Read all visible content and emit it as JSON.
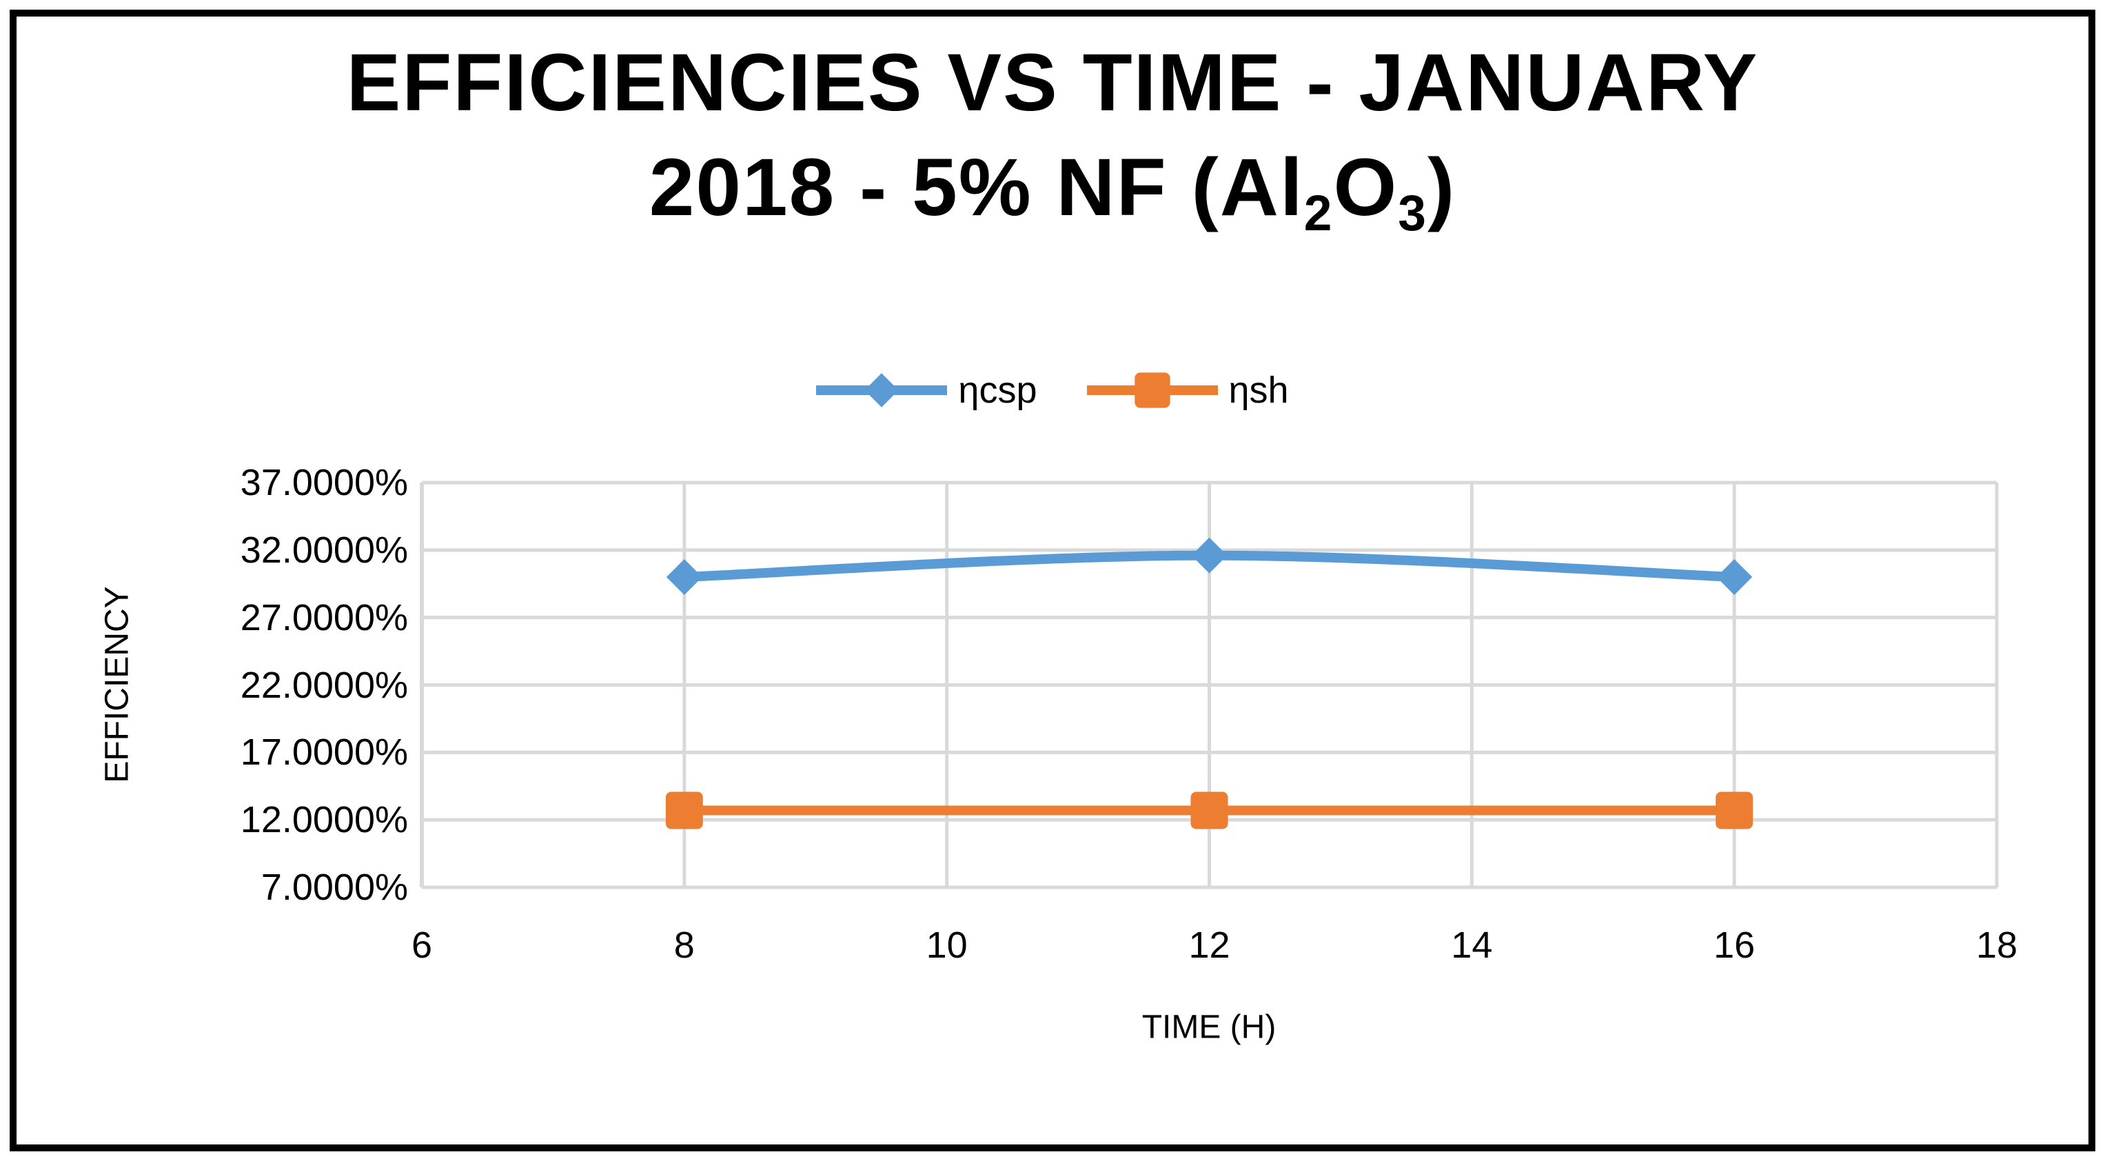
{
  "title": {
    "line1": "EFFICIENCIES VS TIME - JANUARY",
    "line2": {
      "prefix": "2018 - 5% NF (Al",
      "sub1": "2",
      "mid": "O",
      "sub2": "3",
      "suffix": ")"
    }
  },
  "chart_data": {
    "type": "line",
    "title": "EFFICIENCIES VS TIME - JANUARY 2018 - 5% NF (Al2O3)",
    "x": [
      8,
      12,
      16
    ],
    "series": [
      {
        "name": "ηcsp",
        "values": [
          30.0,
          31.6,
          30.0
        ],
        "color": "#5B9BD5",
        "marker": "diamond",
        "smooth": true
      },
      {
        "name": "ηsh",
        "values": [
          12.7,
          12.7,
          12.7
        ],
        "color": "#ED7D31",
        "marker": "square",
        "smooth": false
      }
    ],
    "xlabel": "TIME (H)",
    "ylabel": "EFFICIENCY",
    "xlim": [
      6,
      18
    ],
    "ylim": [
      7,
      37
    ],
    "x_ticks": [
      6,
      8,
      10,
      12,
      14,
      16,
      18
    ],
    "y_ticks": [
      {
        "value": 37,
        "label": "37.0000%"
      },
      {
        "value": 32,
        "label": "32.0000%"
      },
      {
        "value": 27,
        "label": "27.0000%"
      },
      {
        "value": 22,
        "label": "22.0000%"
      },
      {
        "value": 17,
        "label": "17.0000%"
      },
      {
        "value": 12,
        "label": "12.0000%"
      },
      {
        "value": 7,
        "label": "7.0000%"
      }
    ],
    "grid": true,
    "legend_position": "top-center",
    "colors": {
      "gridline": "#D9D9D9",
      "axis": "#D9D9D9",
      "text": "#000000",
      "border": "#000000",
      "background": "#FFFFFF"
    }
  }
}
